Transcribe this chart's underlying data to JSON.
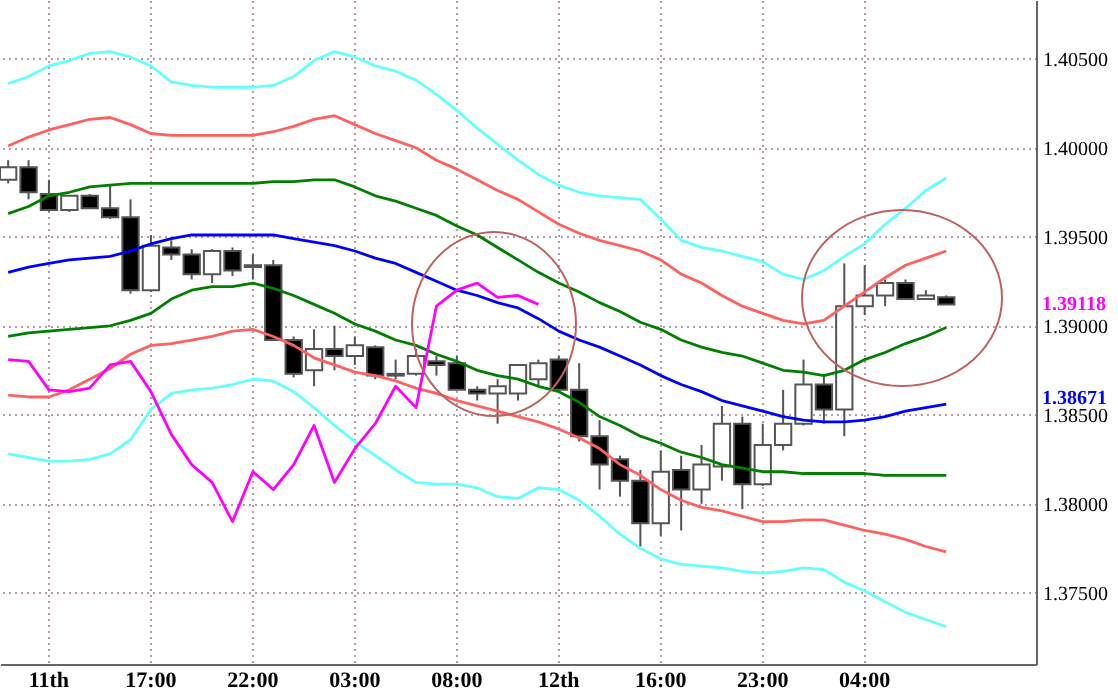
{
  "chart_data": {
    "type": "candlestick",
    "categories": [
      null,
      null,
      "11th",
      null,
      null,
      null,
      null,
      "17:00",
      null,
      null,
      null,
      null,
      "22:00",
      null,
      null,
      null,
      null,
      "03:00",
      null,
      null,
      null,
      null,
      "08:00",
      null,
      null,
      null,
      null,
      "12th",
      null,
      null,
      null,
      null,
      "16:00",
      null,
      null,
      null,
      null,
      "23:00",
      null,
      null,
      null,
      null,
      "04:00",
      null,
      null,
      null,
      null,
      null,
      null,
      null,
      null
    ],
    "ohlc": [
      [
        1.3982,
        1.3993,
        1.398,
        1.3989
      ],
      [
        1.3989,
        1.3993,
        1.3971,
        1.3975
      ],
      [
        1.3974,
        1.3982,
        1.3964,
        1.3965
      ],
      [
        1.3965,
        1.3973,
        1.3964,
        1.3973
      ],
      [
        1.3973,
        1.3974,
        1.3966,
        1.3966
      ],
      [
        1.3966,
        1.3979,
        1.396,
        1.3961
      ],
      [
        1.3961,
        1.3971,
        1.3918,
        1.392
      ],
      [
        1.392,
        1.3951,
        1.3919,
        1.3945
      ],
      [
        1.3944,
        1.3948,
        1.3937,
        1.394
      ],
      [
        1.394,
        1.3943,
        1.3926,
        1.3929
      ],
      [
        1.3929,
        1.3943,
        1.3924,
        1.3942
      ],
      [
        1.3942,
        1.3944,
        1.3928,
        1.3931
      ],
      [
        1.3933,
        1.394,
        1.3926,
        1.3934
      ],
      [
        1.3934,
        1.3937,
        1.3892,
        1.3892
      ],
      [
        1.3892,
        1.3894,
        1.3871,
        1.3873
      ],
      [
        1.3875,
        1.3898,
        1.3866,
        1.3887
      ],
      [
        1.3887,
        1.39,
        1.3875,
        1.3883
      ],
      [
        1.3883,
        1.3894,
        1.3878,
        1.3889
      ],
      [
        1.3888,
        1.3889,
        1.387,
        1.3872
      ],
      [
        1.3872,
        1.3881,
        1.387,
        1.3873
      ],
      [
        1.3873,
        1.3887,
        1.3872,
        1.3883
      ],
      [
        1.388,
        1.3883,
        1.3872,
        1.3878
      ],
      [
        1.3879,
        1.3883,
        1.3864,
        1.3864
      ],
      [
        1.3864,
        1.3866,
        1.3858,
        1.3862
      ],
      [
        1.3862,
        1.387,
        1.3845,
        1.3866
      ],
      [
        1.3862,
        1.3878,
        1.3858,
        1.3878
      ],
      [
        1.387,
        1.3881,
        1.3866,
        1.3879
      ],
      [
        1.3881,
        1.3883,
        1.3863,
        1.3864
      ],
      [
        1.3864,
        1.3879,
        1.3835,
        1.3838
      ],
      [
        1.3838,
        1.3847,
        1.3808,
        1.3822
      ],
      [
        1.3825,
        1.3827,
        1.3804,
        1.3813
      ],
      [
        1.3813,
        1.3819,
        1.3776,
        1.3789
      ],
      [
        1.3789,
        1.383,
        1.3782,
        1.3818
      ],
      [
        1.3819,
        1.3827,
        1.3785,
        1.3808
      ],
      [
        1.3808,
        1.3833,
        1.38,
        1.3822
      ],
      [
        1.3821,
        1.3855,
        1.3813,
        1.3845
      ],
      [
        1.3845,
        1.3849,
        1.3797,
        1.3811
      ],
      [
        1.3811,
        1.3845,
        1.381,
        1.3833
      ],
      [
        1.3833,
        1.3864,
        1.383,
        1.3845
      ],
      [
        1.3845,
        1.3881,
        1.3844,
        1.3867
      ],
      [
        1.3867,
        1.3873,
        1.3845,
        1.3853
      ],
      [
        1.3853,
        1.3935,
        1.3838,
        1.3911
      ],
      [
        1.3911,
        1.3934,
        1.3906,
        1.3917
      ],
      [
        1.3917,
        1.3926,
        1.3911,
        1.3924
      ],
      [
        1.3924,
        1.3926,
        1.3915,
        1.3915
      ],
      [
        1.3915,
        1.392,
        1.3915,
        1.3917
      ],
      [
        1.3916,
        1.3917,
        1.3912,
        1.3912
      ],
      null,
      null,
      null,
      null
    ],
    "series": [
      {
        "type": "line",
        "color": "#66ffff",
        "values": [
          1.4036,
          1.404,
          1.4046,
          1.4049,
          1.4053,
          1.4054,
          1.4051,
          1.4046,
          1.4037,
          1.4035,
          1.4034,
          1.4034,
          1.4034,
          1.4035,
          1.404,
          1.4049,
          1.4054,
          1.4051,
          1.4046,
          1.4043,
          1.4038,
          1.403,
          1.4021,
          1.4011,
          1.4002,
          1.3993,
          1.3985,
          1.3979,
          1.3975,
          1.3973,
          1.3972,
          1.3971,
          1.396,
          1.3948,
          1.3944,
          1.3942,
          1.3939,
          1.3936,
          1.3929,
          1.3926,
          1.3931,
          1.3939,
          1.3946,
          1.3957,
          1.3966,
          1.3976,
          1.3983,
          null,
          null,
          null,
          null
        ]
      },
      {
        "type": "line",
        "color": "#ff6060",
        "values": [
          1.4001,
          1.4006,
          1.401,
          1.4013,
          1.4016,
          1.4017,
          1.4013,
          1.4008,
          1.4007,
          1.4007,
          1.4007,
          1.4007,
          1.4007,
          1.4009,
          1.4012,
          1.4016,
          1.4018,
          1.4013,
          1.4008,
          1.4004,
          1.4,
          1.3993,
          1.3988,
          1.3982,
          1.3976,
          1.3971,
          1.3964,
          1.3957,
          1.3952,
          1.3948,
          1.3945,
          1.3942,
          1.3937,
          1.3929,
          1.3924,
          1.3917,
          1.3911,
          1.3907,
          1.3903,
          1.3901,
          1.3903,
          1.3911,
          1.3919,
          1.3927,
          1.3934,
          1.3938,
          1.3942,
          null,
          null,
          null,
          null
        ]
      },
      {
        "type": "line",
        "color": "#007f00",
        "values": [
          1.3963,
          1.3967,
          1.3973,
          1.3975,
          1.3978,
          1.3979,
          1.398,
          1.398,
          1.398,
          1.398,
          1.398,
          1.398,
          1.398,
          1.3981,
          1.3981,
          1.3982,
          1.3982,
          1.3978,
          1.3973,
          1.397,
          1.3966,
          1.3962,
          1.3956,
          1.3951,
          1.3944,
          1.3937,
          1.393,
          1.3924,
          1.3919,
          1.3913,
          1.3908,
          1.3902,
          1.3898,
          1.3892,
          1.3888,
          1.3885,
          1.3883,
          1.3879,
          1.3875,
          1.3874,
          1.3872,
          1.3875,
          1.3881,
          1.3885,
          1.389,
          1.3894,
          1.3899,
          null,
          null,
          null,
          null
        ]
      },
      {
        "type": "line",
        "color": "#0000ff",
        "values": [
          1.393,
          1.3933,
          1.3935,
          1.3937,
          1.3938,
          1.3939,
          1.3942,
          1.3946,
          1.3949,
          1.3951,
          1.3951,
          1.3951,
          1.3951,
          1.3951,
          1.3949,
          1.3947,
          1.3945,
          1.3942,
          1.3938,
          1.3935,
          1.393,
          1.3925,
          1.392,
          1.3917,
          1.3913,
          1.391,
          1.3904,
          1.3897,
          1.3892,
          1.3888,
          1.3883,
          1.3878,
          1.3872,
          1.3867,
          1.3863,
          1.3858,
          1.3855,
          1.3852,
          1.3849,
          1.3847,
          1.3846,
          1.3846,
          1.3847,
          1.3849,
          1.3852,
          1.3854,
          1.3856,
          null,
          null,
          null,
          null
        ]
      },
      {
        "type": "line",
        "color": "#007f00",
        "values": [
          1.3894,
          1.3896,
          1.3897,
          1.3898,
          1.3899,
          1.39,
          1.3903,
          1.3907,
          1.3915,
          1.392,
          1.3922,
          1.3922,
          1.3924,
          1.3921,
          1.3917,
          1.3912,
          1.3907,
          1.3901,
          1.3897,
          1.3892,
          1.3889,
          1.3884,
          1.388,
          1.3875,
          1.3872,
          1.387,
          1.3866,
          1.3863,
          1.3857,
          1.3849,
          1.3844,
          1.3838,
          1.3834,
          1.3829,
          1.3826,
          1.3822,
          1.382,
          1.3818,
          1.3818,
          1.3817,
          1.3817,
          1.3817,
          1.3817,
          1.3816,
          1.3816,
          1.3816,
          1.3816,
          null,
          null,
          null,
          null
        ]
      },
      {
        "type": "line",
        "color": "#ff6060",
        "values": [
          1.3861,
          1.386,
          1.386,
          1.3864,
          1.387,
          1.3876,
          1.3884,
          1.3889,
          1.389,
          1.3892,
          1.3894,
          1.3897,
          1.3898,
          1.3894,
          1.3889,
          1.3882,
          1.3878,
          1.3874,
          1.3872,
          1.3869,
          1.3865,
          1.3862,
          1.3858,
          1.3855,
          1.3852,
          1.3849,
          1.3846,
          1.3842,
          1.3837,
          1.3831,
          1.3822,
          1.3816,
          1.3808,
          1.3802,
          1.3798,
          1.3796,
          1.3793,
          1.379,
          1.379,
          1.3791,
          1.3791,
          1.3788,
          1.3785,
          1.3783,
          1.378,
          1.3776,
          1.3773,
          null,
          null,
          null,
          null
        ]
      },
      {
        "type": "line",
        "color": "#66ffff",
        "values": [
          1.3828,
          1.3826,
          1.3824,
          1.3824,
          1.3825,
          1.3828,
          1.3836,
          1.3853,
          1.3862,
          1.3864,
          1.3865,
          1.3867,
          1.387,
          1.3869,
          1.3863,
          1.3854,
          1.3844,
          1.3835,
          1.3827,
          1.3819,
          1.3812,
          1.3811,
          1.3811,
          1.3809,
          1.3804,
          1.3803,
          1.3809,
          1.3808,
          1.3802,
          1.3793,
          1.3783,
          1.3775,
          1.3769,
          1.3766,
          1.3765,
          1.3764,
          1.3762,
          1.3761,
          1.3762,
          1.3764,
          1.3763,
          1.3756,
          1.3751,
          1.3745,
          1.3739,
          1.3735,
          1.3731,
          null,
          null,
          null,
          null
        ]
      },
      {
        "type": "line",
        "color": "#ff00ff",
        "values": [
          1.3881,
          1.388,
          1.3864,
          1.3863,
          1.3865,
          1.3878,
          1.388,
          1.3863,
          1.3839,
          1.3822,
          1.3812,
          1.379,
          1.3818,
          1.3808,
          1.3822,
          1.3844,
          1.3812,
          1.3831,
          1.3845,
          1.3866,
          1.3854,
          1.3911,
          1.392,
          1.3924,
          1.3916,
          1.3917,
          1.3912,
          null,
          null,
          null,
          null,
          null,
          null,
          null,
          null,
          null,
          null,
          null,
          null,
          null,
          null,
          null,
          null,
          null,
          null,
          null,
          null,
          null,
          null,
          null,
          null
        ]
      }
    ],
    "ylim": [
      1.371,
      1.4083
    ],
    "yticks": [
      {
        "value": 1.375,
        "label": "1.37500"
      },
      {
        "value": 1.38,
        "label": "1.38000"
      },
      {
        "value": 1.385,
        "label": "1.38500"
      },
      {
        "value": 1.39,
        "label": "1.39000"
      },
      {
        "value": 1.395,
        "label": "1.39500"
      },
      {
        "value": 1.4,
        "label": "1.40000"
      },
      {
        "value": 1.405,
        "label": "1.40500"
      }
    ],
    "grid": true,
    "annotations": [
      "1.39118",
      "1.38671"
    ]
  }
}
